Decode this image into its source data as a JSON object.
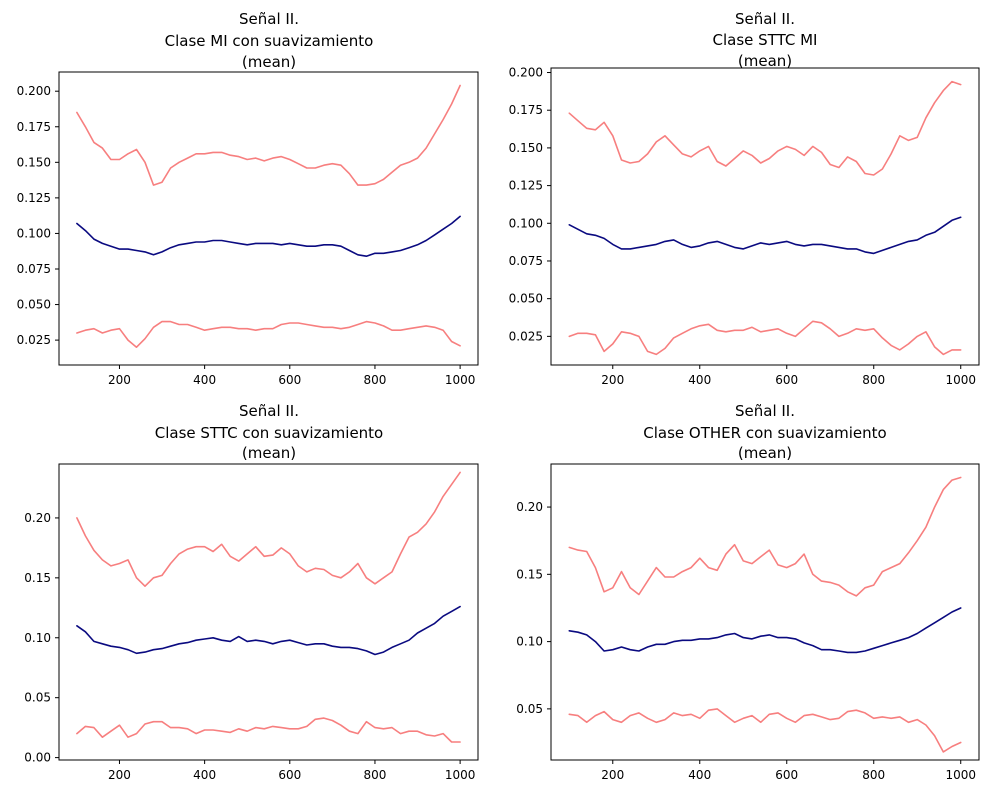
{
  "chart_data": [
    {
      "type": "line",
      "title": [
        "Señal II.",
        "Clase MI con suavizamiento",
        "(mean)"
      ],
      "xlim": [
        58,
        1042
      ],
      "ylim": [
        0.0075,
        0.2135
      ],
      "xticks": [
        200,
        400,
        600,
        800,
        1000
      ],
      "yticks": [
        0.025,
        0.05,
        0.075,
        0.1,
        0.125,
        0.15,
        0.175,
        0.2
      ],
      "ytick_labels": [
        "0.025",
        "0.050",
        "0.075",
        "0.100",
        "0.125",
        "0.150",
        "0.175",
        "0.200"
      ],
      "x": [
        100,
        120,
        140,
        160,
        180,
        200,
        220,
        240,
        260,
        280,
        300,
        320,
        340,
        360,
        380,
        400,
        420,
        440,
        460,
        480,
        500,
        520,
        540,
        560,
        580,
        600,
        620,
        640,
        660,
        680,
        700,
        720,
        740,
        760,
        780,
        800,
        820,
        840,
        860,
        880,
        900,
        920,
        940,
        960,
        980,
        1000
      ],
      "series": [
        {
          "role": "upper",
          "color": "#f77f7f",
          "values": [
            0.185,
            0.175,
            0.164,
            0.16,
            0.152,
            0.152,
            0.156,
            0.159,
            0.15,
            0.134,
            0.136,
            0.146,
            0.15,
            0.153,
            0.156,
            0.156,
            0.157,
            0.157,
            0.155,
            0.154,
            0.152,
            0.153,
            0.151,
            0.153,
            0.154,
            0.152,
            0.149,
            0.146,
            0.146,
            0.148,
            0.149,
            0.148,
            0.142,
            0.134,
            0.134,
            0.135,
            0.138,
            0.143,
            0.148,
            0.15,
            0.153,
            0.16,
            0.17,
            0.18,
            0.191,
            0.204
          ]
        },
        {
          "role": "mean",
          "color": "#0a0a80",
          "values": [
            0.107,
            0.102,
            0.096,
            0.093,
            0.091,
            0.089,
            0.089,
            0.088,
            0.087,
            0.085,
            0.087,
            0.09,
            0.092,
            0.093,
            0.094,
            0.094,
            0.095,
            0.095,
            0.094,
            0.093,
            0.092,
            0.093,
            0.093,
            0.093,
            0.092,
            0.093,
            0.092,
            0.091,
            0.091,
            0.092,
            0.092,
            0.091,
            0.088,
            0.085,
            0.084,
            0.086,
            0.086,
            0.087,
            0.088,
            0.09,
            0.092,
            0.095,
            0.099,
            0.103,
            0.107,
            0.112
          ]
        },
        {
          "role": "lower",
          "color": "#f77f7f",
          "values": [
            0.03,
            0.032,
            0.033,
            0.03,
            0.032,
            0.033,
            0.025,
            0.02,
            0.026,
            0.034,
            0.038,
            0.038,
            0.036,
            0.036,
            0.034,
            0.032,
            0.033,
            0.034,
            0.034,
            0.033,
            0.033,
            0.032,
            0.033,
            0.033,
            0.036,
            0.037,
            0.037,
            0.036,
            0.035,
            0.034,
            0.034,
            0.033,
            0.034,
            0.036,
            0.038,
            0.037,
            0.035,
            0.032,
            0.032,
            0.033,
            0.034,
            0.035,
            0.034,
            0.032,
            0.024,
            0.021
          ]
        }
      ]
    },
    {
      "type": "line",
      "title": [
        "Señal II.",
        "Clase STTC MI",
        "(mean)"
      ],
      "xlim": [
        58,
        1042
      ],
      "ylim": [
        0.006,
        0.203
      ],
      "xticks": [
        200,
        400,
        600,
        800,
        1000
      ],
      "yticks": [
        0.025,
        0.05,
        0.075,
        0.1,
        0.125,
        0.15,
        0.175,
        0.2
      ],
      "ytick_labels": [
        "0.025",
        "0.050",
        "0.075",
        "0.100",
        "0.125",
        "0.150",
        "0.175",
        "0.200"
      ],
      "x": [
        100,
        120,
        140,
        160,
        180,
        200,
        220,
        240,
        260,
        280,
        300,
        320,
        340,
        360,
        380,
        400,
        420,
        440,
        460,
        480,
        500,
        520,
        540,
        560,
        580,
        600,
        620,
        640,
        660,
        680,
        700,
        720,
        740,
        760,
        780,
        800,
        820,
        840,
        860,
        880,
        900,
        920,
        940,
        960,
        980,
        1000
      ],
      "series": [
        {
          "role": "upper",
          "color": "#f77f7f",
          "values": [
            0.173,
            0.168,
            0.163,
            0.162,
            0.167,
            0.158,
            0.142,
            0.14,
            0.141,
            0.146,
            0.154,
            0.158,
            0.152,
            0.146,
            0.144,
            0.148,
            0.151,
            0.141,
            0.138,
            0.143,
            0.148,
            0.145,
            0.14,
            0.143,
            0.148,
            0.151,
            0.149,
            0.145,
            0.151,
            0.147,
            0.139,
            0.137,
            0.144,
            0.141,
            0.133,
            0.132,
            0.136,
            0.146,
            0.158,
            0.155,
            0.157,
            0.17,
            0.18,
            0.188,
            0.194,
            0.192
          ]
        },
        {
          "role": "mean",
          "color": "#0a0a80",
          "values": [
            0.099,
            0.096,
            0.093,
            0.092,
            0.09,
            0.086,
            0.083,
            0.083,
            0.084,
            0.085,
            0.086,
            0.088,
            0.089,
            0.086,
            0.084,
            0.085,
            0.087,
            0.088,
            0.086,
            0.084,
            0.083,
            0.085,
            0.087,
            0.086,
            0.087,
            0.088,
            0.086,
            0.085,
            0.086,
            0.086,
            0.085,
            0.084,
            0.083,
            0.083,
            0.081,
            0.08,
            0.082,
            0.084,
            0.086,
            0.088,
            0.089,
            0.092,
            0.094,
            0.098,
            0.102,
            0.104
          ]
        },
        {
          "role": "lower",
          "color": "#f77f7f",
          "values": [
            0.025,
            0.027,
            0.027,
            0.026,
            0.015,
            0.02,
            0.028,
            0.027,
            0.025,
            0.015,
            0.013,
            0.017,
            0.024,
            0.027,
            0.03,
            0.032,
            0.033,
            0.029,
            0.028,
            0.029,
            0.029,
            0.031,
            0.028,
            0.029,
            0.03,
            0.027,
            0.025,
            0.03,
            0.035,
            0.034,
            0.03,
            0.025,
            0.027,
            0.03,
            0.029,
            0.03,
            0.024,
            0.019,
            0.016,
            0.02,
            0.025,
            0.028,
            0.018,
            0.013,
            0.016,
            0.016
          ]
        }
      ]
    },
    {
      "type": "line",
      "title": [
        "Señal II.",
        "Clase STTC con suavizamiento",
        "(mean)"
      ],
      "xlim": [
        58,
        1042
      ],
      "ylim": [
        -0.002,
        0.245
      ],
      "xticks": [
        200,
        400,
        600,
        800,
        1000
      ],
      "yticks": [
        0.0,
        0.05,
        0.1,
        0.15,
        0.2
      ],
      "ytick_labels": [
        "0.00",
        "0.05",
        "0.10",
        "0.15",
        "0.20"
      ],
      "x": [
        100,
        120,
        140,
        160,
        180,
        200,
        220,
        240,
        260,
        280,
        300,
        320,
        340,
        360,
        380,
        400,
        420,
        440,
        460,
        480,
        500,
        520,
        540,
        560,
        580,
        600,
        620,
        640,
        660,
        680,
        700,
        720,
        740,
        760,
        780,
        800,
        820,
        840,
        860,
        880,
        900,
        920,
        940,
        960,
        980,
        1000
      ],
      "series": [
        {
          "role": "upper",
          "color": "#f77f7f",
          "values": [
            0.2,
            0.185,
            0.173,
            0.165,
            0.16,
            0.162,
            0.165,
            0.15,
            0.143,
            0.15,
            0.152,
            0.162,
            0.17,
            0.174,
            0.176,
            0.176,
            0.172,
            0.178,
            0.168,
            0.164,
            0.17,
            0.176,
            0.168,
            0.169,
            0.175,
            0.17,
            0.16,
            0.155,
            0.158,
            0.157,
            0.152,
            0.15,
            0.155,
            0.162,
            0.15,
            0.145,
            0.15,
            0.155,
            0.17,
            0.184,
            0.188,
            0.195,
            0.205,
            0.218,
            0.228,
            0.238
          ]
        },
        {
          "role": "mean",
          "color": "#0a0a80",
          "values": [
            0.11,
            0.105,
            0.097,
            0.095,
            0.093,
            0.092,
            0.09,
            0.087,
            0.088,
            0.09,
            0.091,
            0.093,
            0.095,
            0.096,
            0.098,
            0.099,
            0.1,
            0.098,
            0.097,
            0.101,
            0.097,
            0.098,
            0.097,
            0.095,
            0.097,
            0.098,
            0.096,
            0.094,
            0.095,
            0.095,
            0.093,
            0.092,
            0.092,
            0.091,
            0.089,
            0.086,
            0.088,
            0.092,
            0.095,
            0.098,
            0.104,
            0.108,
            0.112,
            0.118,
            0.122,
            0.126
          ]
        },
        {
          "role": "lower",
          "color": "#f77f7f",
          "values": [
            0.02,
            0.026,
            0.025,
            0.017,
            0.022,
            0.027,
            0.017,
            0.02,
            0.028,
            0.03,
            0.03,
            0.025,
            0.025,
            0.024,
            0.02,
            0.023,
            0.023,
            0.022,
            0.021,
            0.024,
            0.022,
            0.025,
            0.024,
            0.026,
            0.025,
            0.024,
            0.024,
            0.026,
            0.032,
            0.033,
            0.031,
            0.027,
            0.022,
            0.02,
            0.03,
            0.025,
            0.024,
            0.025,
            0.02,
            0.022,
            0.022,
            0.019,
            0.018,
            0.02,
            0.013,
            0.013
          ]
        }
      ]
    },
    {
      "type": "line",
      "title": [
        "Señal II.",
        "Clase OTHER con suavizamiento",
        "(mean)"
      ],
      "xlim": [
        58,
        1042
      ],
      "ylim": [
        0.012,
        0.232
      ],
      "xticks": [
        200,
        400,
        600,
        800,
        1000
      ],
      "yticks": [
        0.05,
        0.1,
        0.15,
        0.2
      ],
      "ytick_labels": [
        "0.05",
        "0.10",
        "0.15",
        "0.20"
      ],
      "x": [
        100,
        120,
        140,
        160,
        180,
        200,
        220,
        240,
        260,
        280,
        300,
        320,
        340,
        360,
        380,
        400,
        420,
        440,
        460,
        480,
        500,
        520,
        540,
        560,
        580,
        600,
        620,
        640,
        660,
        680,
        700,
        720,
        740,
        760,
        780,
        800,
        820,
        840,
        860,
        880,
        900,
        920,
        940,
        960,
        980,
        1000
      ],
      "series": [
        {
          "role": "upper",
          "color": "#f77f7f",
          "values": [
            0.17,
            0.168,
            0.167,
            0.155,
            0.137,
            0.14,
            0.152,
            0.14,
            0.135,
            0.145,
            0.155,
            0.148,
            0.148,
            0.152,
            0.155,
            0.162,
            0.155,
            0.153,
            0.165,
            0.172,
            0.16,
            0.158,
            0.163,
            0.168,
            0.157,
            0.155,
            0.158,
            0.165,
            0.15,
            0.145,
            0.144,
            0.142,
            0.137,
            0.134,
            0.14,
            0.142,
            0.152,
            0.155,
            0.158,
            0.166,
            0.175,
            0.185,
            0.2,
            0.213,
            0.22,
            0.222
          ]
        },
        {
          "role": "mean",
          "color": "#0a0a80",
          "values": [
            0.108,
            0.107,
            0.105,
            0.1,
            0.093,
            0.094,
            0.096,
            0.094,
            0.093,
            0.096,
            0.098,
            0.098,
            0.1,
            0.101,
            0.101,
            0.102,
            0.102,
            0.103,
            0.105,
            0.106,
            0.103,
            0.102,
            0.104,
            0.105,
            0.103,
            0.103,
            0.102,
            0.099,
            0.097,
            0.094,
            0.094,
            0.093,
            0.092,
            0.092,
            0.093,
            0.095,
            0.097,
            0.099,
            0.101,
            0.103,
            0.106,
            0.11,
            0.114,
            0.118,
            0.122,
            0.125
          ]
        },
        {
          "role": "lower",
          "color": "#f77f7f",
          "values": [
            0.046,
            0.045,
            0.04,
            0.045,
            0.048,
            0.042,
            0.04,
            0.045,
            0.047,
            0.043,
            0.04,
            0.042,
            0.047,
            0.045,
            0.046,
            0.043,
            0.049,
            0.05,
            0.045,
            0.04,
            0.043,
            0.045,
            0.04,
            0.046,
            0.047,
            0.043,
            0.04,
            0.045,
            0.046,
            0.044,
            0.042,
            0.043,
            0.048,
            0.049,
            0.047,
            0.043,
            0.044,
            0.043,
            0.044,
            0.04,
            0.042,
            0.038,
            0.03,
            0.018,
            0.022,
            0.025
          ]
        }
      ]
    }
  ]
}
